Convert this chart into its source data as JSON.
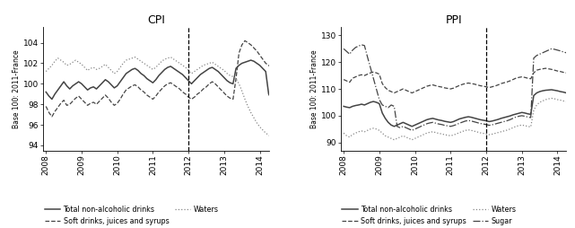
{
  "title_left": "CPI",
  "title_right": "PPI",
  "ylabel_left": "Base 100: 2011-France",
  "ylabel_right": "Base 100: 2011-France",
  "vline_x": 2012.0,
  "cpi_ylim": [
    93.5,
    105.5
  ],
  "ppi_ylim": [
    87,
    133
  ],
  "cpi_yticks": [
    94,
    96,
    98,
    100,
    102,
    104
  ],
  "ppi_yticks": [
    90,
    100,
    110,
    120,
    130
  ],
  "xlim": [
    2007.92,
    2014.25
  ],
  "xticks": [
    2008,
    2009,
    2010,
    2011,
    2012,
    2013,
    2014
  ],
  "cpi_total": [
    99.2,
    98.8,
    98.5,
    99.0,
    99.4,
    99.8,
    100.2,
    99.8,
    99.5,
    99.8,
    100.0,
    100.2,
    100.0,
    99.7,
    99.4,
    99.6,
    99.7,
    99.5,
    99.8,
    100.1,
    100.4,
    100.2,
    99.9,
    99.6,
    99.8,
    100.2,
    100.6,
    101.0,
    101.2,
    101.4,
    101.5,
    101.3,
    101.0,
    100.8,
    100.5,
    100.3,
    100.1,
    100.4,
    100.8,
    101.1,
    101.4,
    101.6,
    101.7,
    101.5,
    101.3,
    101.1,
    100.9,
    100.6,
    100.3,
    100.0,
    100.3,
    100.6,
    100.9,
    101.1,
    101.3,
    101.5,
    101.6,
    101.4,
    101.2,
    100.9,
    100.6,
    100.3,
    100.1,
    100.0,
    101.5,
    101.8,
    102.0,
    102.1,
    102.2,
    102.3,
    102.2,
    102.0,
    101.8,
    101.5,
    101.2,
    99.0,
    98.5,
    98.0,
    97.8,
    98.2,
    98.5,
    98.8,
    99.0,
    98.8,
    98.5,
    98.2,
    98.0,
    97.8
  ],
  "cpi_soft": [
    97.8,
    97.2,
    96.8,
    97.3,
    97.7,
    98.1,
    98.4,
    97.9,
    98.0,
    98.3,
    98.6,
    98.8,
    98.5,
    98.2,
    97.9,
    98.1,
    98.2,
    98.0,
    98.3,
    98.6,
    98.9,
    98.6,
    98.2,
    97.9,
    98.1,
    98.5,
    99.0,
    99.4,
    99.6,
    99.8,
    99.9,
    99.7,
    99.4,
    99.2,
    98.9,
    98.7,
    98.5,
    98.8,
    99.2,
    99.5,
    99.8,
    100.0,
    100.1,
    99.9,
    99.7,
    99.5,
    99.2,
    99.0,
    98.7,
    98.5,
    98.7,
    99.0,
    99.2,
    99.5,
    99.7,
    100.0,
    100.2,
    100.0,
    99.7,
    99.4,
    99.1,
    98.8,
    98.6,
    98.5,
    100.5,
    103.0,
    103.8,
    104.2,
    104.0,
    103.8,
    103.5,
    103.2,
    102.8,
    102.4,
    102.0,
    101.8,
    101.5,
    101.3,
    101.5,
    101.8,
    102.0,
    102.2,
    102.3,
    102.0,
    101.8,
    101.5,
    101.3,
    101.0
  ],
  "cpi_waters": [
    101.2,
    101.5,
    101.8,
    102.2,
    102.5,
    102.3,
    102.1,
    101.8,
    101.9,
    102.1,
    102.3,
    102.1,
    101.9,
    101.6,
    101.3,
    101.5,
    101.6,
    101.4,
    101.5,
    101.7,
    101.9,
    101.6,
    101.3,
    101.0,
    101.2,
    101.6,
    102.0,
    102.3,
    102.4,
    102.5,
    102.6,
    102.4,
    102.2,
    102.0,
    101.8,
    101.6,
    101.4,
    101.6,
    101.9,
    102.2,
    102.4,
    102.5,
    102.6,
    102.4,
    102.2,
    102.0,
    101.8,
    101.6,
    101.3,
    101.0,
    101.2,
    101.4,
    101.6,
    101.8,
    101.9,
    102.0,
    102.1,
    101.9,
    101.7,
    101.5,
    101.3,
    101.0,
    100.8,
    100.7,
    100.5,
    100.0,
    99.3,
    98.5,
    97.8,
    97.2,
    96.7,
    96.2,
    95.8,
    95.5,
    95.2,
    95.0,
    94.8,
    94.6,
    94.5,
    94.4,
    94.5,
    94.6,
    94.7,
    94.6,
    94.5,
    94.4,
    94.3,
    94.2
  ],
  "ppi_total": [
    103.5,
    103.2,
    103.0,
    103.5,
    103.8,
    104.0,
    104.3,
    104.0,
    104.5,
    105.0,
    105.3,
    105.0,
    104.5,
    101.0,
    99.0,
    97.5,
    96.5,
    96.0,
    96.5,
    97.0,
    97.5,
    97.0,
    96.5,
    96.0,
    96.5,
    97.0,
    97.5,
    98.0,
    98.5,
    98.8,
    99.0,
    98.7,
    98.4,
    98.2,
    97.9,
    97.7,
    97.5,
    97.8,
    98.3,
    98.8,
    99.1,
    99.4,
    99.6,
    99.4,
    99.1,
    98.8,
    98.5,
    98.3,
    98.1,
    97.8,
    98.0,
    98.3,
    98.6,
    99.0,
    99.3,
    99.6,
    99.9,
    100.3,
    100.6,
    100.9,
    101.2,
    101.0,
    100.7,
    100.5,
    107.5,
    108.5,
    109.0,
    109.3,
    109.5,
    109.6,
    109.7,
    109.5,
    109.3,
    109.0,
    108.8,
    108.5,
    108.3,
    108.2,
    108.3,
    108.5,
    108.7,
    109.0,
    109.2,
    109.0,
    108.8,
    108.5,
    108.3,
    108.0
  ],
  "ppi_soft": [
    113.5,
    113.0,
    112.5,
    114.0,
    114.5,
    115.0,
    115.3,
    115.0,
    115.5,
    116.0,
    116.3,
    116.0,
    115.5,
    112.0,
    110.5,
    109.5,
    109.0,
    108.5,
    109.0,
    109.5,
    110.0,
    109.5,
    109.0,
    108.5,
    109.0,
    109.5,
    110.0,
    110.5,
    111.0,
    111.3,
    111.5,
    111.2,
    110.9,
    110.7,
    110.4,
    110.2,
    110.0,
    110.3,
    110.8,
    111.3,
    111.7,
    112.0,
    112.2,
    112.0,
    111.8,
    111.5,
    111.2,
    111.0,
    110.8,
    110.5,
    110.8,
    111.1,
    111.5,
    112.0,
    112.3,
    112.6,
    113.0,
    113.5,
    114.0,
    114.3,
    114.5,
    114.3,
    114.0,
    113.8,
    116.0,
    117.0,
    117.3,
    117.5,
    117.7,
    117.5,
    117.3,
    117.0,
    116.7,
    116.5,
    116.2,
    116.0,
    115.8,
    115.7,
    115.8,
    116.0,
    116.2,
    116.5,
    116.7,
    116.5,
    116.3,
    116.0,
    115.8,
    115.5
  ],
  "ppi_waters": [
    93.5,
    92.5,
    92.0,
    93.0,
    93.5,
    94.0,
    94.3,
    94.0,
    94.5,
    95.0,
    95.3,
    95.0,
    94.5,
    93.5,
    92.5,
    92.0,
    91.5,
    91.0,
    91.5,
    92.0,
    92.5,
    92.0,
    91.5,
    91.0,
    91.5,
    92.0,
    92.5,
    93.0,
    93.5,
    93.8,
    94.0,
    93.7,
    93.4,
    93.2,
    92.9,
    92.7,
    92.5,
    92.8,
    93.2,
    93.7,
    94.1,
    94.5,
    94.7,
    94.5,
    94.2,
    93.9,
    93.6,
    93.4,
    93.2,
    92.9,
    93.1,
    93.4,
    93.7,
    94.0,
    94.3,
    94.6,
    95.0,
    95.5,
    96.0,
    96.3,
    96.5,
    96.3,
    96.0,
    95.8,
    102.0,
    104.0,
    105.0,
    105.5,
    106.0,
    106.3,
    106.5,
    106.3,
    106.0,
    105.8,
    105.5,
    105.3,
    105.2,
    105.1,
    105.2,
    105.3,
    105.5,
    105.7,
    106.0,
    105.8,
    105.5,
    105.3,
    105.0,
    104.8
  ],
  "ppi_sugar": [
    125.0,
    124.0,
    123.0,
    124.5,
    125.5,
    126.0,
    126.5,
    126.2,
    122.0,
    118.0,
    114.0,
    110.0,
    106.0,
    104.0,
    103.5,
    103.0,
    104.0,
    103.5,
    96.0,
    95.5,
    96.0,
    95.5,
    95.0,
    94.5,
    95.0,
    95.5,
    96.0,
    96.5,
    97.0,
    97.3,
    97.5,
    97.2,
    96.9,
    96.7,
    96.4,
    96.2,
    96.0,
    96.3,
    96.7,
    97.2,
    97.6,
    98.0,
    98.2,
    98.0,
    97.7,
    97.4,
    97.1,
    96.9,
    96.7,
    96.4,
    96.6,
    96.9,
    97.2,
    97.5,
    97.8,
    98.1,
    98.5,
    99.0,
    99.5,
    99.8,
    100.0,
    99.8,
    99.5,
    99.3,
    121.5,
    122.5,
    123.0,
    123.5,
    124.0,
    124.5,
    125.0,
    124.8,
    124.5,
    124.2,
    123.8,
    123.5,
    123.0,
    122.8,
    123.0,
    123.2,
    123.5,
    124.0,
    124.5,
    124.3,
    124.0,
    123.8,
    123.5,
    123.2
  ],
  "bg_color": "#ffffff",
  "line_color": "#444444",
  "line_color_light": "#888888"
}
